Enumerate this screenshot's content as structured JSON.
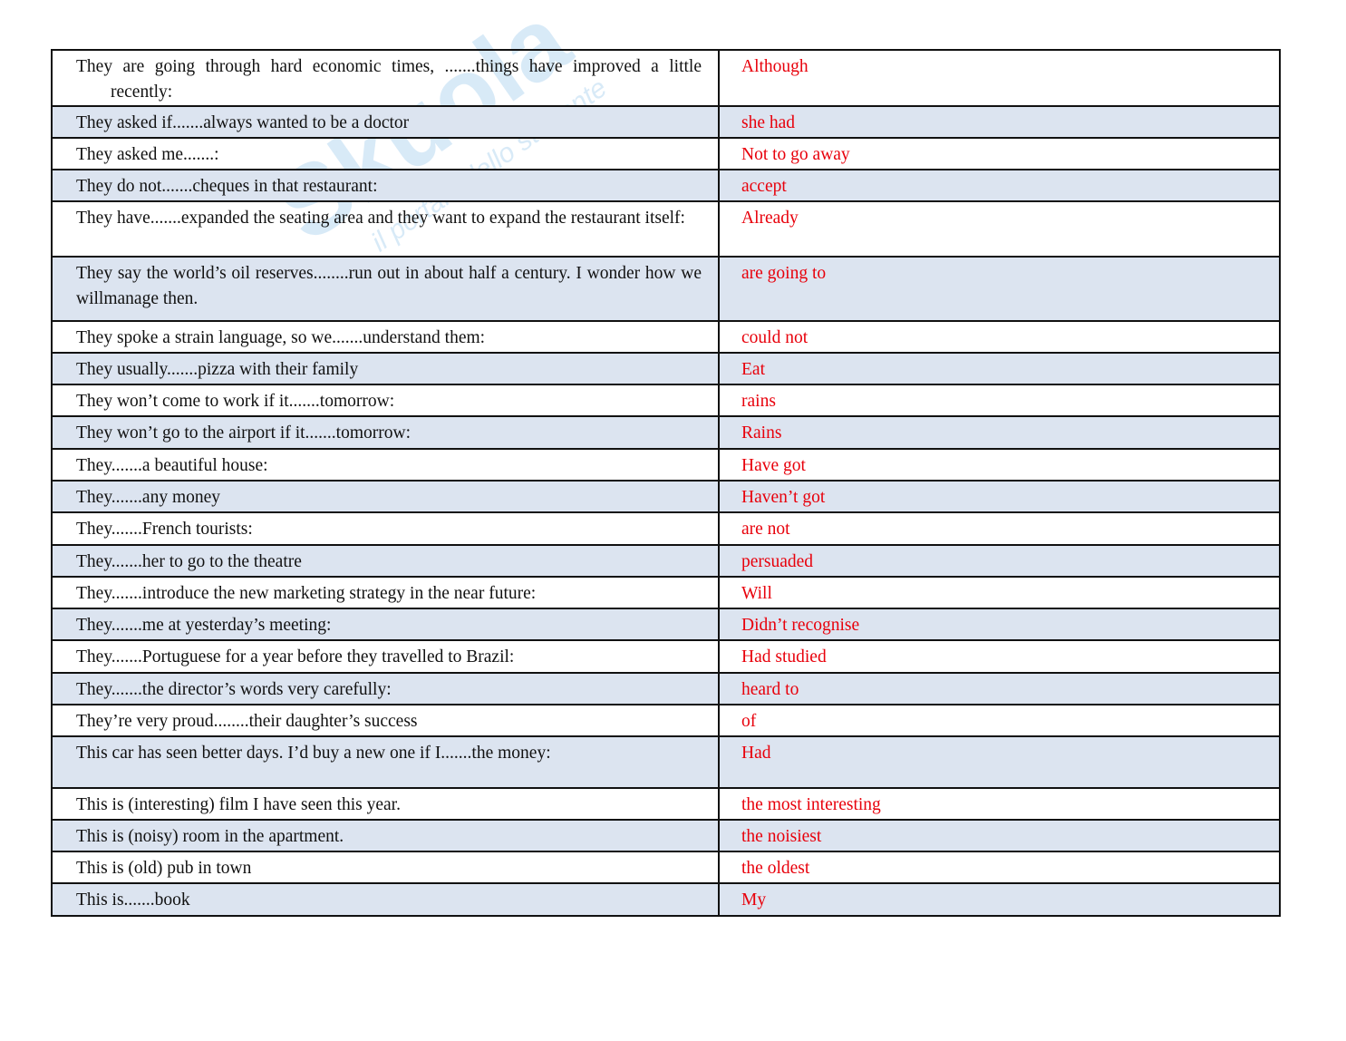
{
  "watermark": {
    "brand": "Skuola.net",
    "tagline": "il portale dello studente"
  },
  "rows": [
    {
      "q": "They are going through hard economic times, .......things have improved a little recently:",
      "a": "Although"
    },
    {
      "q": "They asked if.......always wanted to be a doctor",
      "a": "she had"
    },
    {
      "q": "They asked me.......:",
      "a": "Not to go away"
    },
    {
      "q": "They do not.......cheques in that restaurant:",
      "a": "accept"
    },
    {
      "q": "They have.......expanded the seating area and they want to expand the restaurant itself:",
      "a": "Already"
    },
    {
      "q": "They say the world’s oil reserves........run out in about half a century. I wonder how we willmanage then.",
      "a": "are going to"
    },
    {
      "q": "They spoke a strain language, so we.......understand them:",
      "a": "could not"
    },
    {
      "q": "They usually.......pizza with their family",
      "a": "Eat"
    },
    {
      "q": "They won’t come to work if it.......tomorrow:",
      "a": "rains"
    },
    {
      "q": "They won’t go to the airport if it.......tomorrow:",
      "a": "Rains"
    },
    {
      "q": "They.......a beautiful house:",
      "a": "Have got"
    },
    {
      "q": "They.......any money",
      "a": "Haven’t got"
    },
    {
      "q": "They.......French tourists:",
      "a": "are not"
    },
    {
      "q": "They.......her to go to the theatre",
      "a": "persuaded"
    },
    {
      "q": "They.......introduce the new marketing strategy in the near future:",
      "a": "Will"
    },
    {
      "q": "They.......me at yesterday’s meeting:",
      "a": "Didn’t recognise"
    },
    {
      "q": "They.......Portuguese for a year before they travelled to Brazil:",
      "a": "Had studied"
    },
    {
      "q": "They.......the director’s words very carefully:",
      "a": "heard to"
    },
    {
      "q": "They’re very proud........their daughter’s success",
      "a": "of"
    },
    {
      "q": "This car has seen better days. I’d buy a new one if I.......the money:",
      "a": "Had"
    },
    {
      "q": "This is (interesting) film I have seen this year.",
      "a": "the most interesting"
    },
    {
      "q": "This is (noisy) room in the apartment.",
      "a": "the noisiest"
    },
    {
      "q": "This is (old) pub in town",
      "a": "the oldest"
    },
    {
      "q": "This is.......book",
      "a": "My"
    }
  ]
}
